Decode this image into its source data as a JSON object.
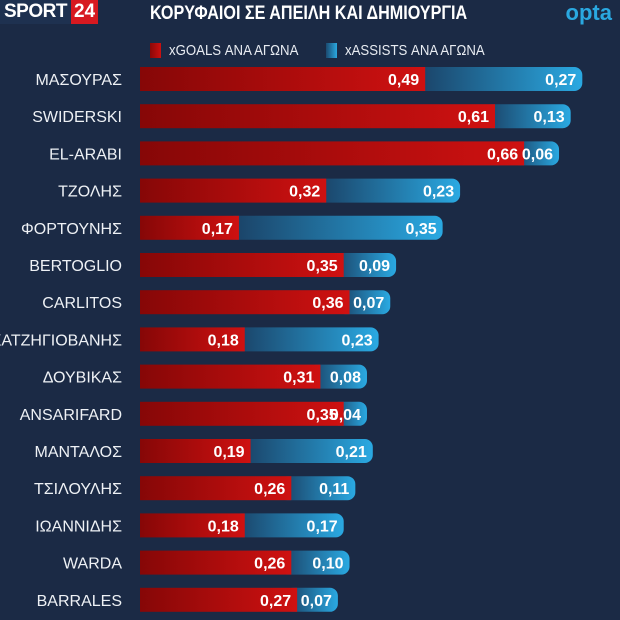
{
  "header": {
    "brand": "SPORT",
    "brand_num": "24",
    "title": "ΚΟΡΥΦΑΙΟΙ ΣΕ ΑΠΕΙΛΗ ΚΑΙ ΔΗΜΙΟΥΡΓΙΑ",
    "provider": "opta"
  },
  "chart_data": {
    "type": "bar",
    "orientation": "horizontal",
    "stacked": true,
    "title": "ΚΟΡΥΦΑΙΟΙ ΣΕ ΑΠΕΙΛΗ ΚΑΙ ΔΗΜΙΟΥΡΓΙΑ",
    "legend_position": "top",
    "categories": [
      "ΜΑΣΟΥΡΑΣ",
      "SWIDERSKI",
      "EL-ARABI",
      "ΤΖΟΛΗΣ",
      "ΦΟΡΤΟΥΝΗΣ",
      "BERTOGLIO",
      "CARLITOS",
      "ΧΑΤΖΗΓΙΟΒΑΝΗΣ",
      "ΔΟΥΒΙΚΑΣ",
      "ANSARIFARD",
      "ΜΑΝΤΑΛΟΣ",
      "ΤΣΙΛΟΥΛΗΣ",
      "ΙΩΑΝΝΙΔΗΣ",
      "WARDA",
      "BARRALES"
    ],
    "series": [
      {
        "name": "xGOALS ΑΝΑ ΑΓΩΝΑ",
        "color": "#cc1010",
        "values": [
          0.49,
          0.61,
          0.66,
          0.32,
          0.17,
          0.35,
          0.36,
          0.18,
          0.31,
          0.35,
          0.19,
          0.26,
          0.18,
          0.26,
          0.27
        ],
        "labels": [
          "0,49",
          "0,61",
          "0,66",
          "0,32",
          "0,17",
          "0,35",
          "0,36",
          "0,18",
          "0,31",
          "0,35",
          "0,19",
          "0,26",
          "0,18",
          "0,26",
          "0,27"
        ]
      },
      {
        "name": "xASSISTS ΑΝΑ ΑΓΩΝΑ",
        "color": "#2aa8e0",
        "values": [
          0.27,
          0.13,
          0.06,
          0.23,
          0.35,
          0.09,
          0.07,
          0.23,
          0.08,
          0.04,
          0.21,
          0.11,
          0.17,
          0.1,
          0.07
        ],
        "labels": [
          "0,27",
          "0,13",
          "0,06",
          "0,23",
          "0,35",
          "0,09",
          "0,07",
          "0,23",
          "0,08",
          "0,04",
          "0,21",
          "0,11",
          "0,17",
          "0,10",
          "0,07"
        ]
      }
    ]
  }
}
